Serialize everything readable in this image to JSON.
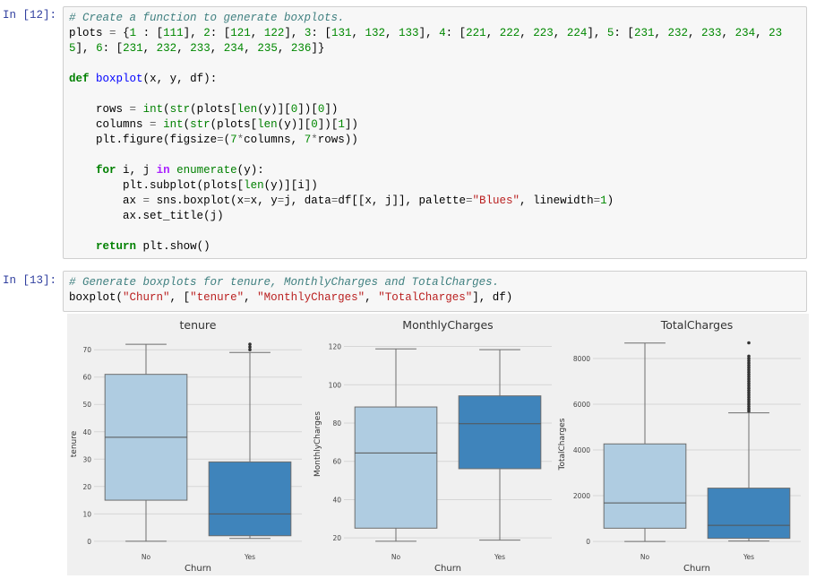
{
  "cells": [
    {
      "prompt": "In [12]:",
      "code": "# Create a function to generate boxplots.\nplots = {1 : [111], 2: [121, 122], 3: [131, 132, 133], 4: [221, 222, 223, 224], 5: [231, 232, 233, 234, 23\n5], 6: [231, 232, 233, 234, 235, 236]}\n\ndef boxplot(x, y, df):\n\n    rows = int(str(plots[len(y)][0])[0])\n    columns = int(str(plots[len(y)][0])[1])\n    plt.figure(figsize=(7*columns, 7*rows))\n\n    for i, j in enumerate(y):\n        plt.subplot(plots[len(y)][i])\n        ax = sns.boxplot(x=x, y=j, data=df[[x, j]], palette=\"Blues\", linewidth=1)\n        ax.set_title(j)\n\n    return plt.show()"
    },
    {
      "prompt": "In [13]:",
      "code": "# Generate boxplots for tenure, MonthlyCharges and TotalCharges.\nboxplot(\"Churn\", [\"tenure\", \"MonthlyCharges\", \"TotalCharges\"], df)"
    }
  ],
  "chart_data": [
    {
      "type": "boxplot",
      "title": "tenure",
      "xlabel": "Churn",
      "ylabel": "tenure",
      "categories": [
        "No",
        "Yes"
      ],
      "colors": [
        "#afcce1",
        "#3f84bb"
      ],
      "boxes": [
        {
          "whislo": 0,
          "q1": 15,
          "med": 38,
          "q3": 61,
          "whishi": 72,
          "fliers": []
        },
        {
          "whislo": 1,
          "q1": 2,
          "med": 10,
          "q3": 29,
          "whishi": 69,
          "fliers": [
            70,
            71,
            72
          ]
        }
      ],
      "ylim": [
        -3,
        74
      ],
      "yticks": [
        0,
        10,
        20,
        30,
        40,
        50,
        60,
        70
      ],
      "grid": true
    },
    {
      "type": "boxplot",
      "title": "MonthlyCharges",
      "xlabel": "Churn",
      "ylabel": "MonthlyCharges",
      "categories": [
        "No",
        "Yes"
      ],
      "colors": [
        "#afcce1",
        "#3f84bb"
      ],
      "boxes": [
        {
          "whislo": 18.25,
          "q1": 25.1,
          "med": 64.4,
          "q3": 88.4,
          "whishi": 118.75,
          "fliers": []
        },
        {
          "whislo": 18.85,
          "q1": 56.15,
          "med": 79.65,
          "q3": 94.2,
          "whishi": 118.35,
          "fliers": []
        }
      ],
      "ylim": [
        14,
        124
      ],
      "yticks": [
        20,
        40,
        60,
        80,
        100,
        120
      ],
      "grid": true
    },
    {
      "type": "boxplot",
      "title": "TotalCharges",
      "xlabel": "Churn",
      "ylabel": "TotalCharges",
      "categories": [
        "No",
        "Yes"
      ],
      "colors": [
        "#afcce1",
        "#3f84bb"
      ],
      "boxes": [
        {
          "whislo": 0,
          "q1": 577,
          "med": 1683,
          "q3": 4264,
          "whishi": 8672,
          "fliers": []
        },
        {
          "whislo": 19,
          "q1": 134.5,
          "med": 703.55,
          "q3": 2331,
          "whishi": 5624,
          "fliers": [
            5700,
            5800,
            5900,
            6000,
            6100,
            6200,
            6300,
            6400,
            6500,
            6600,
            6700,
            6800,
            6900,
            7000,
            7100,
            7200,
            7300,
            7400,
            7500,
            7600,
            7700,
            7800,
            7900,
            8000,
            8100,
            8684
          ]
        }
      ],
      "ylim": [
        -350,
        8860
      ],
      "yticks": [
        0,
        2000,
        4000,
        6000,
        8000
      ],
      "grid": true
    }
  ]
}
